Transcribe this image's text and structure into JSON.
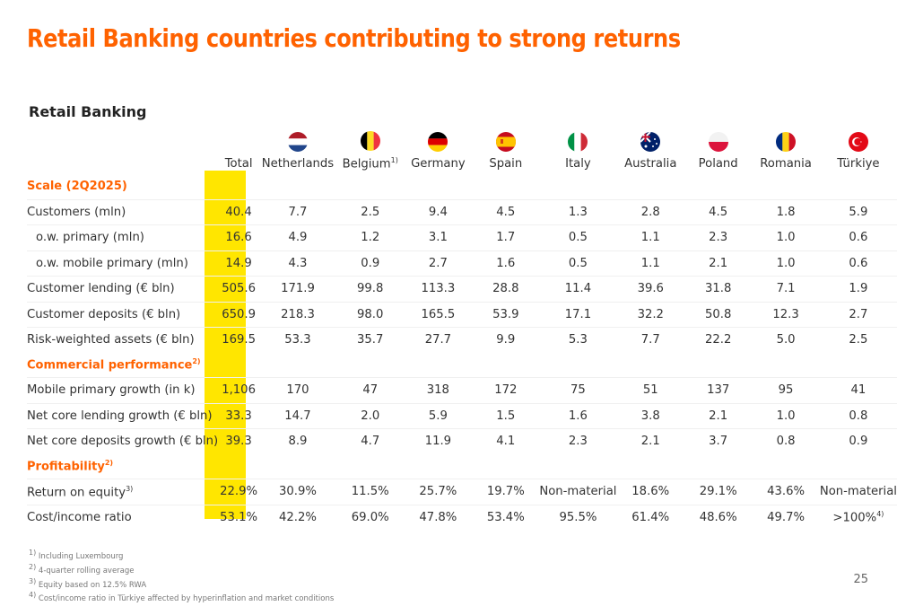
{
  "title": "Retail Banking countries contributing to strong returns",
  "subtitle": "Retail Banking",
  "columns": [
    {
      "label": "Total",
      "sup": ""
    },
    {
      "label": "Netherlands",
      "sup": "",
      "flag": "netherlands-flag-icon"
    },
    {
      "label": "Belgium",
      "sup": "1)",
      "flag": "belgium-flag-icon"
    },
    {
      "label": "Germany",
      "sup": "",
      "flag": "germany-flag-icon"
    },
    {
      "label": "Spain",
      "sup": "",
      "flag": "spain-flag-icon"
    },
    {
      "label": "Italy",
      "sup": "",
      "flag": "italy-flag-icon"
    },
    {
      "label": "Australia",
      "sup": "",
      "flag": "australia-flag-icon"
    },
    {
      "label": "Poland",
      "sup": "",
      "flag": "poland-flag-icon"
    },
    {
      "label": "Romania",
      "sup": "",
      "flag": "romania-flag-icon"
    },
    {
      "label": "Türkiye",
      "sup": "",
      "flag": "turkiye-flag-icon"
    }
  ],
  "sections": [
    {
      "label": "Scale (2Q2025)",
      "sup": "",
      "rows": [
        {
          "label": "Customers (mln)",
          "indent": false,
          "values": [
            "40.4",
            "7.7",
            "2.5",
            "9.4",
            "4.5",
            "1.3",
            "2.8",
            "4.5",
            "1.8",
            "5.9"
          ]
        },
        {
          "label": "o.w. primary (mln)",
          "indent": true,
          "values": [
            "16.6",
            "4.9",
            "1.2",
            "3.1",
            "1.7",
            "0.5",
            "1.1",
            "2.3",
            "1.0",
            "0.6"
          ]
        },
        {
          "label": "o.w. mobile primary (mln)",
          "indent": true,
          "values": [
            "14.9",
            "4.3",
            "0.9",
            "2.7",
            "1.6",
            "0.5",
            "1.1",
            "2.1",
            "1.0",
            "0.6"
          ]
        },
        {
          "label": "Customer lending (€ bln)",
          "indent": false,
          "values": [
            "505.6",
            "171.9",
            "99.8",
            "113.3",
            "28.8",
            "11.4",
            "39.6",
            "31.8",
            "7.1",
            "1.9"
          ]
        },
        {
          "label": "Customer deposits (€ bln)",
          "indent": false,
          "values": [
            "650.9",
            "218.3",
            "98.0",
            "165.5",
            "53.9",
            "17.1",
            "32.2",
            "50.8",
            "12.3",
            "2.7"
          ]
        },
        {
          "label": "Risk-weighted assets (€ bln)",
          "indent": false,
          "values": [
            "169.5",
            "53.3",
            "35.7",
            "27.7",
            "9.9",
            "5.3",
            "7.7",
            "22.2",
            "5.0",
            "2.5"
          ]
        }
      ]
    },
    {
      "label": "Commercial performance",
      "sup": "2)",
      "rows": [
        {
          "label": "Mobile primary growth (in k)",
          "indent": false,
          "values": [
            "1,106",
            "170",
            "47",
            "318",
            "172",
            "75",
            "51",
            "137",
            "95",
            "41"
          ]
        },
        {
          "label": "Net core lending growth (€ bln)",
          "indent": false,
          "values": [
            "33.3",
            "14.7",
            "2.0",
            "5.9",
            "1.5",
            "1.6",
            "3.8",
            "2.1",
            "1.0",
            "0.8"
          ]
        },
        {
          "label": "Net core deposits growth (€ bln)",
          "indent": false,
          "values": [
            "39.3",
            "8.9",
            "4.7",
            "11.9",
            "4.1",
            "2.3",
            "2.1",
            "3.7",
            "0.8",
            "0.9"
          ]
        }
      ]
    },
    {
      "label": "Profitability",
      "sup": "2)",
      "rows": [
        {
          "label": "Return on equity",
          "labelSup": "3)",
          "indent": false,
          "values": [
            "22.9%",
            "30.9%",
            "11.5%",
            "25.7%",
            "19.7%",
            "Non-material",
            "18.6%",
            "29.1%",
            "43.6%",
            "Non-material"
          ]
        },
        {
          "label": "Cost/income ratio",
          "indent": false,
          "values": [
            "53.1%",
            "42.2%",
            "69.0%",
            "47.8%",
            "53.4%",
            "95.5%",
            "61.4%",
            "48.6%",
            "49.7%",
            ">100%"
          ],
          "lastSup": "4)"
        }
      ]
    }
  ],
  "footnotes": [
    {
      "sup": "1)",
      "text": "Including Luxembourg"
    },
    {
      "sup": "2)",
      "text": "4-quarter rolling average"
    },
    {
      "sup": "3)",
      "text": "Equity based on 12.5% RWA"
    },
    {
      "sup": "4)",
      "text": "Cost/income ratio in Türkiye affected by hyperinflation and market conditions"
    }
  ],
  "page_number": "25",
  "colors": {
    "accent": "#ff6200",
    "highlight": "#ffe600"
  }
}
